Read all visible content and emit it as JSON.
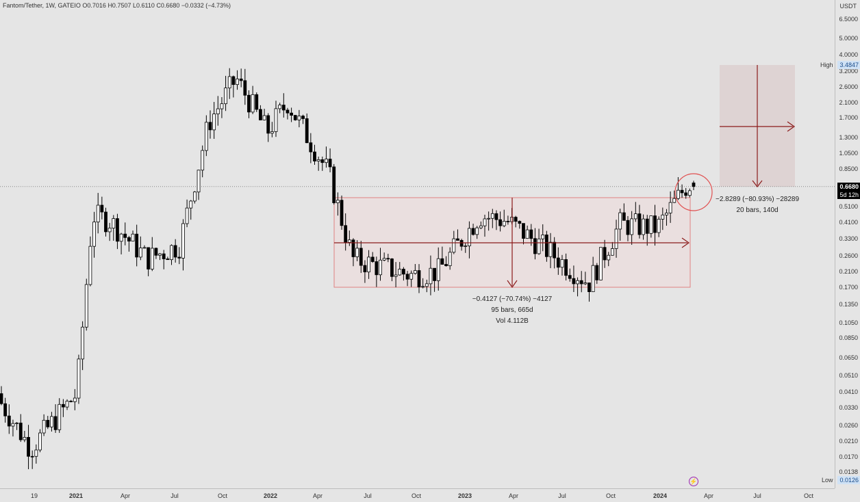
{
  "legend": {
    "symbol": "Fantom/Tether, 1W, GATEIO",
    "open": "O0.7016",
    "high": "H0.7507",
    "low": "L0.6110",
    "close": "C0.6680",
    "change": "−0.0332 (−4.73%)"
  },
  "currency": "USDT",
  "price_ticks": [
    "6.5000",
    "5.0000",
    "4.0000",
    "3.2000",
    "2.6000",
    "2.1000",
    "1.7000",
    "1.3000",
    "1.0500",
    "0.8500",
    "0.5100",
    "0.4100",
    "0.3300",
    "0.2600",
    "0.2100",
    "0.1700",
    "0.1350",
    "0.1050",
    "0.0850",
    "0.0650",
    "0.0510",
    "0.0410",
    "0.0330",
    "0.0260",
    "0.0210",
    "0.0170",
    "0.0138"
  ],
  "high_label": "High",
  "high_value": "3.4847",
  "low_label": "Low",
  "low_value": "0.0126",
  "last_price": "0.6680",
  "countdown": "5d 12h",
  "time_ticks": [
    {
      "label": "19",
      "bold": false
    },
    {
      "label": "2021",
      "bold": true
    },
    {
      "label": "Apr",
      "bold": false
    },
    {
      "label": "Jul",
      "bold": false
    },
    {
      "label": "Oct",
      "bold": false
    },
    {
      "label": "2022",
      "bold": true
    },
    {
      "label": "Apr",
      "bold": false
    },
    {
      "label": "Jul",
      "bold": false
    },
    {
      "label": "Oct",
      "bold": false
    },
    {
      "label": "2023",
      "bold": true
    },
    {
      "label": "Apr",
      "bold": false
    },
    {
      "label": "Jul",
      "bold": false
    },
    {
      "label": "Oct",
      "bold": false
    },
    {
      "label": "2024",
      "bold": true
    },
    {
      "label": "Apr",
      "bold": false
    },
    {
      "label": "Jul",
      "bold": false
    },
    {
      "label": "Oct",
      "bold": false
    }
  ],
  "measure_1": {
    "line1": "−0.4127 (−70.74%) −4127",
    "line2": "95 bars, 665d",
    "line3": "Vol 4.112B"
  },
  "measure_2": {
    "line1": "−2.8289 (−80.93%) −28289",
    "line2": "20 bars, 140d"
  },
  "colors": {
    "up": "#ffffff",
    "down": "#000000",
    "wick": "#000000",
    "annotation": "#8b1a1a",
    "box_fill": "#e8d5d5",
    "last_price_tag": "#000000"
  },
  "chart_data": {
    "type": "candlestick",
    "scale": "log",
    "interval": "1W",
    "ylim": [
      0.0126,
      6.5
    ],
    "candles": [
      {
        "t": "2020-11",
        "o": 0.04,
        "h": 0.055,
        "l": 0.028,
        "c": 0.035
      },
      {
        "t": "2020-12",
        "o": 0.035,
        "h": 0.042,
        "l": 0.014,
        "c": 0.019
      },
      {
        "t": "2021-01",
        "o": 0.019,
        "h": 0.045,
        "l": 0.016,
        "c": 0.04
      },
      {
        "t": "2021-02",
        "o": 0.04,
        "h": 0.8,
        "l": 0.038,
        "c": 0.45
      },
      {
        "t": "2021-03",
        "o": 0.45,
        "h": 0.95,
        "l": 0.3,
        "c": 0.42
      },
      {
        "t": "2021-05",
        "o": 0.42,
        "h": 0.96,
        "l": 0.2,
        "c": 0.25
      },
      {
        "t": "2021-07",
        "o": 0.25,
        "h": 0.45,
        "l": 0.16,
        "c": 0.3
      },
      {
        "t": "2021-09",
        "o": 0.3,
        "h": 2.1,
        "l": 0.28,
        "c": 1.6
      },
      {
        "t": "2021-10",
        "o": 1.6,
        "h": 3.48,
        "l": 1.2,
        "c": 2.9
      },
      {
        "t": "2021-12",
        "o": 2.9,
        "h": 3.4,
        "l": 1.15,
        "c": 1.4
      },
      {
        "t": "2022-02",
        "o": 1.4,
        "h": 3.2,
        "l": 1.3,
        "c": 2.1
      },
      {
        "t": "2022-04",
        "o": 2.1,
        "h": 2.2,
        "l": 0.6,
        "c": 0.8
      },
      {
        "t": "2022-06",
        "o": 0.8,
        "h": 0.82,
        "l": 0.2,
        "c": 0.25
      },
      {
        "t": "2022-09",
        "o": 0.25,
        "h": 0.42,
        "l": 0.17,
        "c": 0.2
      },
      {
        "t": "2022-11",
        "o": 0.2,
        "h": 0.3,
        "l": 0.17,
        "c": 0.21
      },
      {
        "t": "2023-02",
        "o": 0.21,
        "h": 0.6,
        "l": 0.2,
        "c": 0.45
      },
      {
        "t": "2023-04",
        "o": 0.45,
        "h": 0.55,
        "l": 0.35,
        "c": 0.42
      },
      {
        "t": "2023-06",
        "o": 0.42,
        "h": 0.44,
        "l": 0.22,
        "c": 0.28
      },
      {
        "t": "2023-09",
        "o": 0.28,
        "h": 0.3,
        "l": 0.17,
        "c": 0.18
      },
      {
        "t": "2023-11",
        "o": 0.18,
        "h": 0.45,
        "l": 0.17,
        "c": 0.4
      },
      {
        "t": "2024-01",
        "o": 0.4,
        "h": 0.55,
        "l": 0.31,
        "c": 0.38
      },
      {
        "t": "2024-02",
        "o": 0.38,
        "h": 0.72,
        "l": 0.36,
        "c": 0.7
      },
      {
        "t": "2024-03",
        "o": 0.7016,
        "h": 0.7507,
        "l": 0.611,
        "c": 0.668
      }
    ]
  }
}
